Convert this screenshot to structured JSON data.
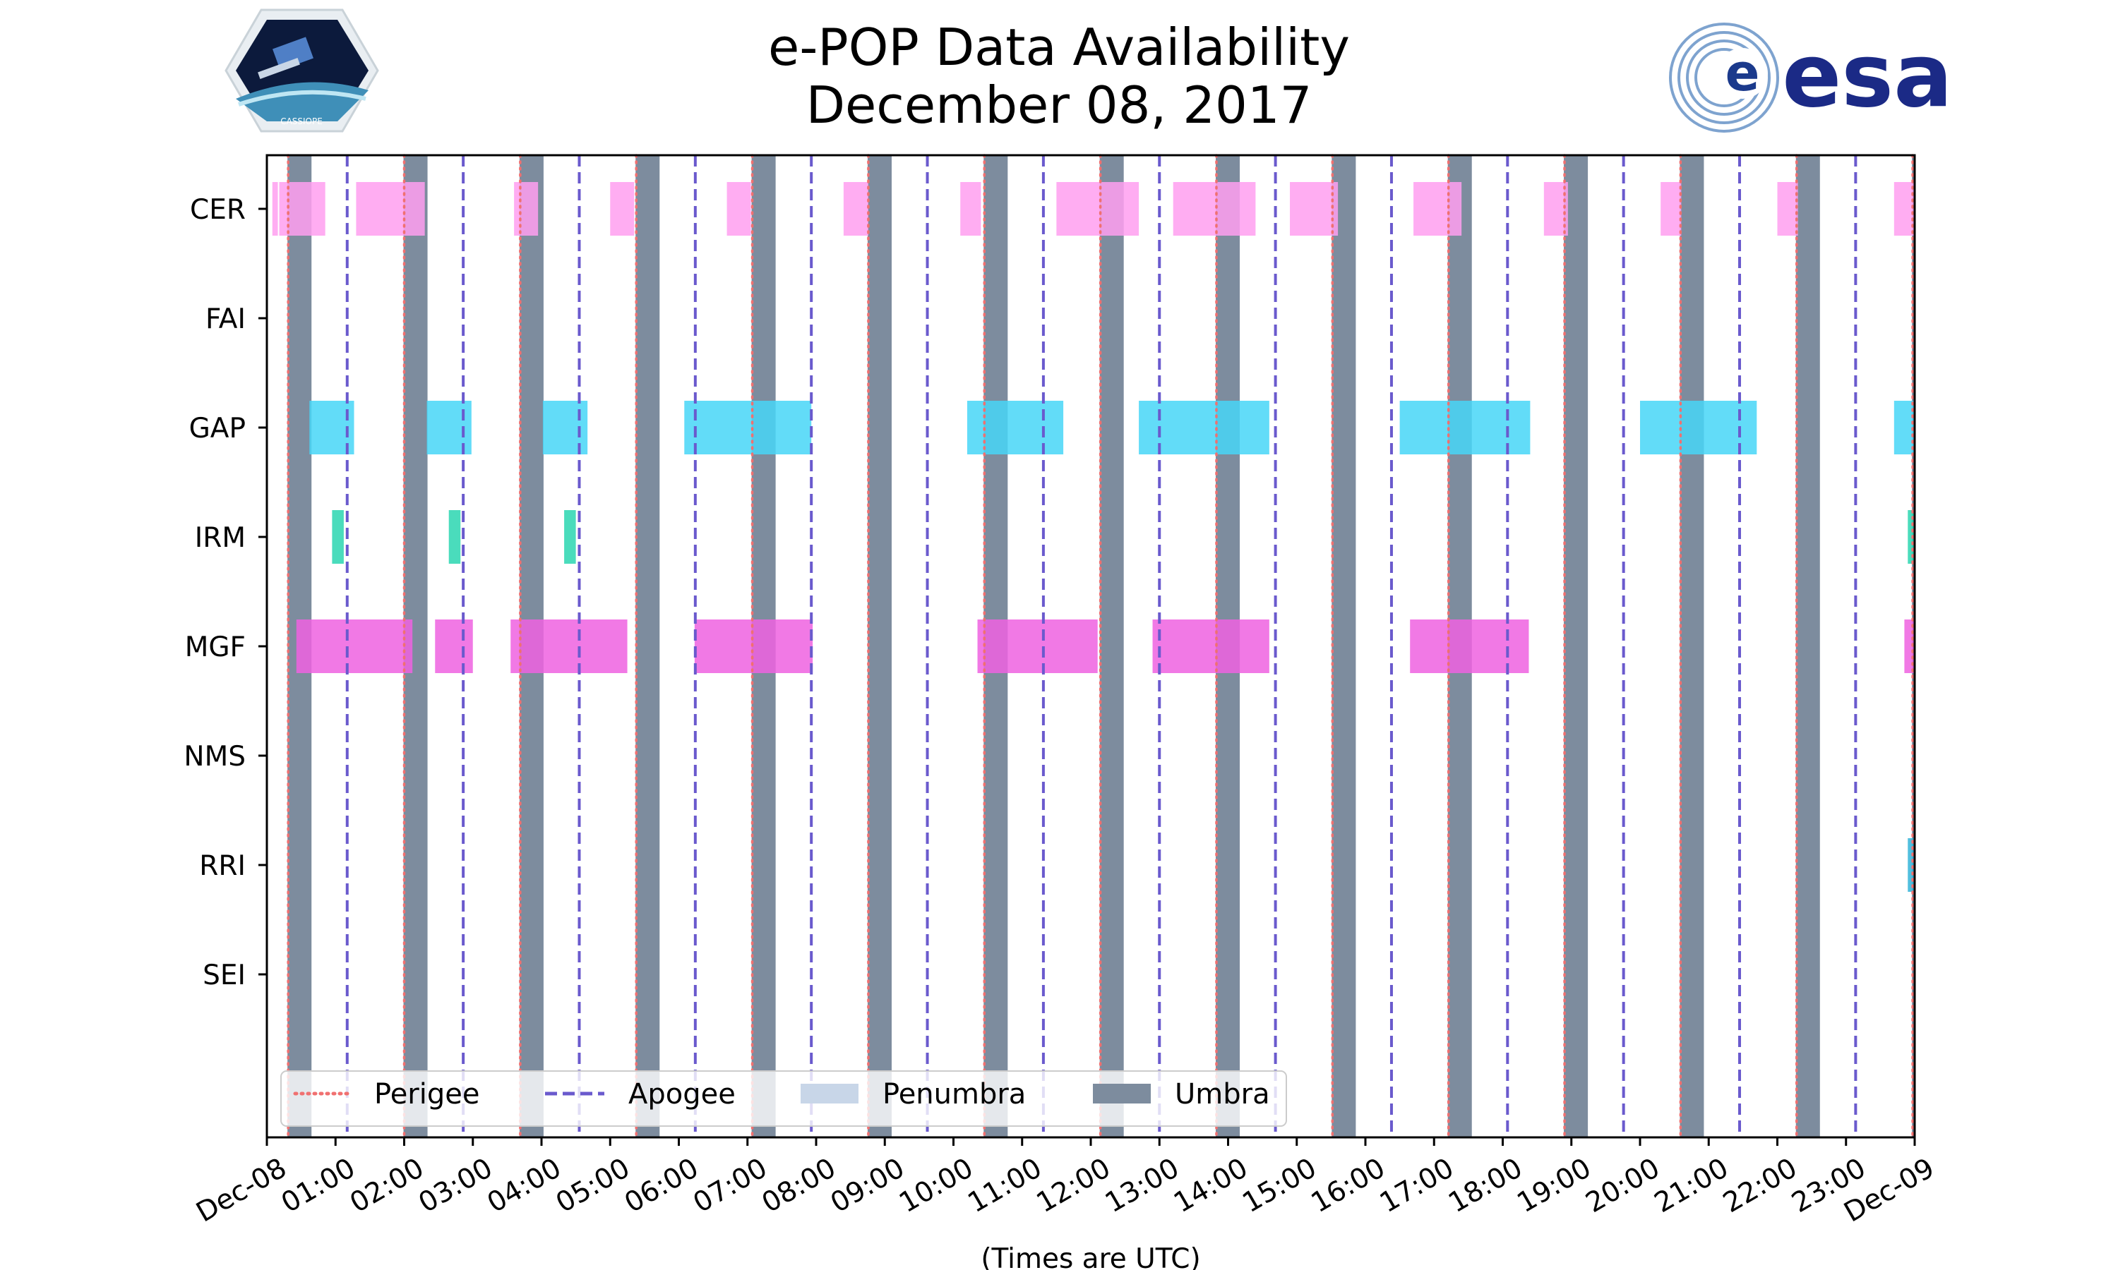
{
  "title_line1": "e-POP Data Availability",
  "title_line2": "December 08, 2017",
  "colors": {
    "perigee": "#f07070",
    "apogee": "#6a5acd",
    "penumbra": "#c8d6e8",
    "umbra": "#7d8c9e",
    "CER": "#ff9ff0",
    "GAP": "#46d6f7",
    "IRM": "#2ad6b0",
    "MGF": "#ee62e0",
    "RRI": "#32b4d8"
  },
  "logos": {
    "left": "cassiope-logo",
    "right_text": "esa"
  },
  "chart_data": {
    "type": "timeline",
    "title": "e-POP Data Availability December 08, 2017",
    "xlabel": "(Times are UTC)",
    "xlim": [
      0,
      24
    ],
    "x_units": "hours UTC",
    "x_ticks": [
      0,
      1,
      2,
      3,
      4,
      5,
      6,
      7,
      8,
      9,
      10,
      11,
      12,
      13,
      14,
      15,
      16,
      17,
      18,
      19,
      20,
      21,
      22,
      23,
      24
    ],
    "x_tick_labels": [
      "Dec-08",
      "01:00",
      "02:00",
      "03:00",
      "04:00",
      "05:00",
      "06:00",
      "07:00",
      "08:00",
      "09:00",
      "10:00",
      "11:00",
      "12:00",
      "13:00",
      "14:00",
      "15:00",
      "16:00",
      "17:00",
      "18:00",
      "19:00",
      "20:00",
      "21:00",
      "22:00",
      "23:00",
      "Dec-09"
    ],
    "instruments": [
      "CER",
      "FAI",
      "GAP",
      "IRM",
      "MGF",
      "NMS",
      "RRI",
      "SEI"
    ],
    "perigee_times": [
      0.31,
      2.0,
      3.69,
      5.38,
      7.07,
      8.76,
      10.45,
      12.14,
      13.83,
      15.52,
      17.21,
      18.9,
      20.59,
      22.28,
      23.97
    ],
    "apogee_times": [
      1.17,
      2.86,
      4.55,
      6.24,
      7.93,
      9.62,
      11.31,
      13.0,
      14.69,
      16.38,
      18.07,
      19.76,
      21.45,
      23.14
    ],
    "umbra": [
      [
        0.3,
        0.65
      ],
      [
        1.99,
        2.34
      ],
      [
        3.68,
        4.03
      ],
      [
        5.37,
        5.72
      ],
      [
        7.06,
        7.41
      ],
      [
        8.75,
        9.1
      ],
      [
        10.44,
        10.79
      ],
      [
        12.13,
        12.48
      ],
      [
        13.82,
        14.17
      ],
      [
        15.51,
        15.86
      ],
      [
        17.2,
        17.55
      ],
      [
        18.89,
        19.24
      ],
      [
        20.58,
        20.93
      ],
      [
        22.27,
        22.62
      ],
      [
        23.96,
        24.0
      ]
    ],
    "penumbra": [],
    "availability": {
      "CER": [
        [
          0.08,
          0.16
        ],
        [
          0.18,
          0.85
        ],
        [
          1.3,
          2.3
        ],
        [
          3.6,
          3.95
        ],
        [
          5.0,
          5.35
        ],
        [
          6.7,
          7.05
        ],
        [
          8.4,
          8.76
        ],
        [
          10.1,
          10.4
        ],
        [
          11.5,
          12.7
        ],
        [
          13.2,
          14.4
        ],
        [
          14.9,
          15.6
        ],
        [
          16.7,
          17.4
        ],
        [
          18.6,
          18.95
        ],
        [
          20.3,
          20.6
        ],
        [
          22.0,
          22.3
        ],
        [
          23.7,
          24.0
        ]
      ],
      "FAI": [],
      "GAP": [
        [
          0.62,
          1.27
        ],
        [
          2.33,
          2.98
        ],
        [
          4.02,
          4.67
        ],
        [
          6.08,
          7.93
        ],
        [
          10.2,
          11.6
        ],
        [
          12.7,
          14.6
        ],
        [
          16.5,
          18.4
        ],
        [
          20.0,
          21.7
        ],
        [
          23.7,
          24.0
        ]
      ],
      "IRM": [
        [
          0.95,
          1.12
        ],
        [
          2.65,
          2.82
        ],
        [
          4.33,
          4.5
        ],
        [
          23.9,
          24.0
        ]
      ],
      "MGF": [
        [
          0.43,
          2.12
        ],
        [
          2.45,
          3.0
        ],
        [
          3.55,
          5.25
        ],
        [
          6.23,
          7.95
        ],
        [
          10.35,
          12.1
        ],
        [
          12.9,
          14.6
        ],
        [
          16.65,
          18.38
        ],
        [
          23.85,
          24.0
        ]
      ],
      "NMS": [],
      "RRI": [
        [
          23.9,
          24.0
        ]
      ],
      "SEI": []
    },
    "legend": [
      "Perigee",
      "Apogee",
      "Penumbra",
      "Umbra"
    ],
    "legend_position": "lower-left"
  }
}
